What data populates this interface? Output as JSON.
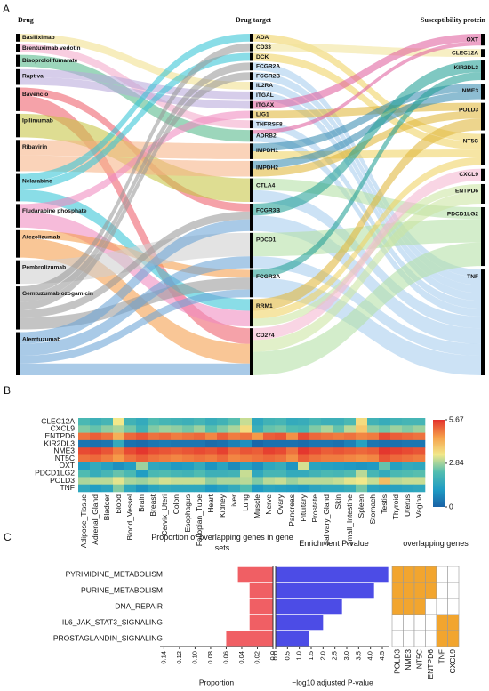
{
  "chart_data": [
    {
      "type": "sankey",
      "panel": "A",
      "columns": [
        {
          "header": "Drug",
          "nodes": [
            {
              "name": "Basiliximab",
              "color": "#f1e08e"
            },
            {
              "name": "Brentuximab vedotin",
              "color": "#f3a9c9"
            },
            {
              "name": "Bisoprolol fumarate",
              "color": "#55b98a"
            },
            {
              "name": "Raptiva",
              "color": "#b9a9da"
            },
            {
              "name": "Bavencio",
              "color": "#ee5f6a"
            },
            {
              "name": "Ipilimumab",
              "color": "#c6c544"
            },
            {
              "name": "Ribavirin",
              "color": "#f6b486"
            },
            {
              "name": "Nelarabine",
              "color": "#36c4d6"
            },
            {
              "name": "Fludarabine phosphate",
              "color": "#f08ac0"
            },
            {
              "name": "Atezolizumab",
              "color": "#f59c4a"
            },
            {
              "name": "Pembrolizumab",
              "color": "#cfcfcf"
            },
            {
              "name": "Gemtuzumab ozogamicin",
              "color": "#9a9a9a"
            },
            {
              "name": "Alemtuzumab",
              "color": "#6ba3d6"
            }
          ]
        },
        {
          "header": "Drug target",
          "nodes": [
            {
              "name": "ADA"
            },
            {
              "name": "CD33"
            },
            {
              "name": "DCK"
            },
            {
              "name": "FCGR2A"
            },
            {
              "name": "FCGR2B"
            },
            {
              "name": "IL2RA"
            },
            {
              "name": "ITGAL"
            },
            {
              "name": "ITGAX"
            },
            {
              "name": "LIG1"
            },
            {
              "name": "TNFRSF8"
            },
            {
              "name": "ADRB2"
            },
            {
              "name": "IMPDH1"
            },
            {
              "name": "IMPDH2"
            },
            {
              "name": "CTLA4"
            },
            {
              "name": "FCGR3B"
            },
            {
              "name": "PDCD1"
            },
            {
              "name": "FCGR3A"
            },
            {
              "name": "RRM1"
            },
            {
              "name": "CD274"
            }
          ]
        },
        {
          "header": "Susceptibility protein",
          "nodes": [
            {
              "name": "OXT",
              "color": "#e0609f"
            },
            {
              "name": "CLEC12A",
              "color": "#f1e49a"
            },
            {
              "name": "KIR2DL3",
              "color": "#23a096"
            },
            {
              "name": "NME3",
              "color": "#3a8db2"
            },
            {
              "name": "POLD3",
              "color": "#e0b73a"
            },
            {
              "name": "NT5C",
              "color": "#efd262"
            },
            {
              "name": "CXCL9",
              "color": "#f5b7d1"
            },
            {
              "name": "ENTPD6",
              "color": "#cbe5a2"
            },
            {
              "name": "PDCD1LG2",
              "color": "#b3e0a6"
            },
            {
              "name": "TNF",
              "color": "#a7cdee"
            }
          ]
        }
      ],
      "links": [
        {
          "source": "Basiliximab",
          "target": "IL2RA",
          "value": 1
        },
        {
          "source": "Brentuximab vedotin",
          "target": "TNFRSF8",
          "value": 1
        },
        {
          "source": "Bisoprolol fumarate",
          "target": "ADRB2",
          "value": 1.5
        },
        {
          "source": "Raptiva",
          "target": "ITGAL",
          "value": 1
        },
        {
          "source": "Raptiva",
          "target": "ITGAX",
          "value": 1
        },
        {
          "source": "Bavencio",
          "target": "FCGR3B",
          "value": 1
        },
        {
          "source": "Bavencio",
          "target": "CD274",
          "value": 2
        },
        {
          "source": "Ipilimumab",
          "target": "CTLA4",
          "value": 3
        },
        {
          "source": "Ribavirin",
          "target": "IMPDH1",
          "value": 2
        },
        {
          "source": "Ribavirin",
          "target": "IMPDH2",
          "value": 2
        },
        {
          "source": "Nelarabine",
          "target": "ADA",
          "value": 1
        },
        {
          "source": "Nelarabine",
          "target": "DCK",
          "value": 1
        },
        {
          "source": "Nelarabine",
          "target": "RRM1",
          "value": 1.5
        },
        {
          "source": "Fludarabine phosphate",
          "target": "LIG1",
          "value": 1
        },
        {
          "source": "Fludarabine phosphate",
          "target": "RRM1",
          "value": 2
        },
        {
          "source": "Atezolizumab",
          "target": "FCGR3A",
          "value": 1
        },
        {
          "source": "Atezolizumab",
          "target": "CD274",
          "value": 2.5
        },
        {
          "source": "Pembrolizumab",
          "target": "PDCD1",
          "value": 3
        },
        {
          "source": "Gemtuzumab ozogamicin",
          "target": "CD33",
          "value": 1
        },
        {
          "source": "Gemtuzumab ozogamicin",
          "target": "FCGR2A",
          "value": 1
        },
        {
          "source": "Gemtuzumab ozogamicin",
          "target": "FCGR2B",
          "value": 1
        },
        {
          "source": "Gemtuzumab ozogamicin",
          "target": "FCGR3B",
          "value": 1
        },
        {
          "source": "Gemtuzumab ozogamicin",
          "target": "FCGR3A",
          "value": 1.5
        },
        {
          "source": "Alemtuzumab",
          "target": "FCGR3B",
          "value": 1.5
        },
        {
          "source": "Alemtuzumab",
          "target": "PDCD1",
          "value": 1.5
        },
        {
          "source": "Alemtuzumab",
          "target": "FCGR3A",
          "value": 1
        },
        {
          "source": "Alemtuzumab",
          "target": "CD274",
          "value": 1.5
        },
        {
          "source": "ADA",
          "target": "NT5C",
          "value": 1
        },
        {
          "source": "CD33",
          "target": "CLEC12A",
          "value": 1
        },
        {
          "source": "DCK",
          "target": "NT5C",
          "value": 1
        },
        {
          "source": "FCGR2A",
          "target": "TNF",
          "value": 1
        },
        {
          "source": "FCGR2B",
          "target": "TNF",
          "value": 1
        },
        {
          "source": "IL2RA",
          "target": "TNF",
          "value": 1
        },
        {
          "source": "ITGAL",
          "target": "TNF",
          "value": 1
        },
        {
          "source": "ITGAX",
          "target": "OXT",
          "value": 1
        },
        {
          "source": "LIG1",
          "target": "POLD3",
          "value": 1
        },
        {
          "source": "TNFRSF8",
          "target": "TNF",
          "value": 1
        },
        {
          "source": "ADRB2",
          "target": "OXT",
          "value": 0.5
        },
        {
          "source": "ADRB2",
          "target": "TNF",
          "value": 1
        },
        {
          "source": "IMPDH1",
          "target": "NME3",
          "value": 1
        },
        {
          "source": "IMPDH1",
          "target": "NT5C",
          "value": 1
        },
        {
          "source": "IMPDH2",
          "target": "NME3",
          "value": 1
        },
        {
          "source": "IMPDH2",
          "target": "POLD3",
          "value": 1
        },
        {
          "source": "CTLA4",
          "target": "PDCD1LG2",
          "value": 1.5
        },
        {
          "source": "CTLA4",
          "target": "TNF",
          "value": 1.5
        },
        {
          "source": "FCGR3B",
          "target": "KIR2DL3",
          "value": 1.5
        },
        {
          "source": "FCGR3B",
          "target": "TNF",
          "value": 2
        },
        {
          "source": "PDCD1",
          "target": "PDCD1LG2",
          "value": 3
        },
        {
          "source": "PDCD1",
          "target": "TNF",
          "value": 1.5
        },
        {
          "source": "FCGR3A",
          "target": "KIR2DL3",
          "value": 1
        },
        {
          "source": "FCGR3A",
          "target": "TNF",
          "value": 2.5
        },
        {
          "source": "RRM1",
          "target": "POLD3",
          "value": 1.5
        },
        {
          "source": "RRM1",
          "target": "NT5C",
          "value": 1
        },
        {
          "source": "RRM1",
          "target": "ENTPD6",
          "value": 1
        },
        {
          "source": "CD274",
          "target": "CXCL9",
          "value": 1.5
        },
        {
          "source": "CD274",
          "target": "ENTPD6",
          "value": 1.5
        },
        {
          "source": "CD274",
          "target": "PDCD1LG2",
          "value": 3
        }
      ]
    },
    {
      "type": "heatmap",
      "panel": "B",
      "rows": [
        "CLEC12A",
        "CXCL9",
        "ENTPD6",
        "KIR2DL3",
        "NME3",
        "NT5C",
        "OXT",
        "PDCD1LG2",
        "POLD3",
        "TNF"
      ],
      "columns": [
        "Adipose_Tissue",
        "Adrenal_Gland",
        "Bladder",
        "Blood",
        "Blood_Vessel",
        "Brain",
        "Breast",
        "Cervix_Uteri",
        "Colon",
        "Esophagus",
        "Fallopian_Tube",
        "Heart",
        "Kidney",
        "Liver",
        "Lung",
        "Muscle",
        "Nerve",
        "Ovary",
        "Pancreas",
        "Pituitary",
        "Prostate",
        "Salivary_Gland",
        "Skin",
        "Small_Intestine",
        "Spleen",
        "Stomach",
        "Testis",
        "Thyroid",
        "Uterus",
        "Vagina"
      ],
      "values": [
        [
          2.1,
          1.8,
          2.0,
          3.4,
          1.9,
          1.6,
          2.2,
          2.0,
          1.9,
          1.8,
          2.0,
          1.7,
          1.9,
          2.3,
          3.1,
          1.5,
          1.9,
          2.0,
          1.6,
          1.7,
          2.0,
          1.8,
          1.8,
          2.1,
          3.6,
          1.9,
          1.7,
          1.9,
          2.0,
          2.0
        ],
        [
          2.6,
          2.4,
          2.7,
          2.9,
          2.5,
          1.9,
          2.6,
          2.8,
          2.7,
          2.5,
          2.8,
          2.3,
          2.6,
          2.9,
          3.6,
          1.8,
          2.4,
          2.5,
          2.2,
          2.1,
          2.6,
          2.9,
          2.4,
          3.0,
          3.9,
          2.7,
          2.5,
          2.8,
          2.6,
          2.8
        ],
        [
          5.0,
          5.2,
          5.0,
          4.3,
          5.1,
          5.3,
          5.0,
          5.1,
          4.9,
          5.0,
          5.1,
          4.8,
          5.2,
          4.9,
          5.0,
          4.6,
          5.2,
          5.3,
          4.7,
          5.4,
          5.1,
          5.0,
          4.9,
          5.0,
          4.8,
          4.9,
          5.4,
          5.2,
          5.1,
          5.0
        ],
        [
          0.4,
          0.3,
          0.4,
          1.6,
          0.3,
          0.2,
          0.4,
          0.5,
          0.4,
          0.4,
          0.4,
          0.2,
          0.3,
          0.6,
          0.9,
          0.1,
          0.3,
          0.3,
          0.3,
          0.2,
          0.4,
          0.4,
          0.3,
          0.6,
          1.3,
          0.4,
          0.3,
          0.3,
          0.4,
          0.4
        ],
        [
          5.4,
          5.5,
          5.3,
          4.9,
          5.4,
          5.6,
          5.4,
          5.3,
          5.2,
          5.3,
          5.4,
          5.3,
          5.5,
          5.1,
          5.3,
          5.2,
          5.5,
          5.4,
          5.0,
          5.6,
          5.4,
          5.2,
          5.3,
          5.2,
          5.1,
          5.2,
          5.6,
          5.5,
          5.4,
          5.3
        ],
        [
          5.0,
          5.1,
          4.9,
          4.6,
          5.0,
          5.2,
          5.0,
          4.9,
          4.8,
          4.9,
          5.0,
          4.9,
          5.1,
          4.8,
          4.9,
          5.0,
          5.1,
          5.0,
          4.7,
          5.2,
          5.0,
          4.9,
          4.9,
          4.8,
          4.7,
          4.8,
          5.3,
          5.1,
          5.0,
          4.9
        ],
        [
          1.2,
          1.6,
          1.3,
          0.9,
          1.2,
          2.8,
          1.5,
          1.4,
          1.1,
          1.2,
          1.6,
          1.0,
          1.4,
          0.8,
          1.3,
          0.9,
          1.5,
          1.7,
          1.0,
          3.2,
          1.4,
          1.3,
          1.2,
          1.1,
          1.0,
          1.1,
          2.4,
          1.3,
          1.6,
          1.5
        ],
        [
          2.2,
          1.7,
          2.0,
          2.4,
          2.1,
          1.2,
          2.1,
          2.2,
          2.0,
          1.9,
          2.2,
          1.8,
          1.8,
          1.9,
          3.1,
          1.5,
          2.0,
          2.0,
          1.6,
          1.6,
          1.9,
          2.1,
          2.0,
          2.2,
          3.0,
          2.0,
          1.6,
          2.1,
          2.2,
          2.3
        ],
        [
          2.9,
          3.0,
          3.0,
          3.3,
          2.9,
          2.8,
          3.0,
          3.2,
          3.1,
          3.1,
          3.1,
          2.7,
          2.9,
          2.9,
          3.0,
          2.6,
          3.0,
          3.1,
          2.8,
          3.0,
          3.0,
          3.0,
          3.1,
          3.3,
          3.4,
          3.1,
          4.1,
          3.0,
          3.1,
          3.1
        ],
        [
          1.5,
          1.2,
          1.4,
          2.6,
          1.5,
          1.0,
          1.4,
          1.6,
          1.5,
          1.5,
          1.5,
          1.1,
          1.3,
          1.6,
          2.2,
          1.1,
          1.4,
          1.3,
          1.2,
          1.1,
          1.4,
          1.5,
          1.5,
          1.7,
          2.5,
          1.4,
          1.3,
          1.3,
          1.4,
          1.5
        ]
      ],
      "zlim": [
        0,
        5.67
      ],
      "zticks": [
        0,
        2.84,
        5.67
      ],
      "colormap": [
        "#1a62a6",
        "#1f9cc4",
        "#52bdb0",
        "#f2e88a",
        "#f6a04a",
        "#e3302c"
      ]
    },
    {
      "type": "hbar",
      "panel": "C",
      "title": "Proportion of overlapping genes in gene sets",
      "xlabel": "Proportion",
      "categories": [
        "PYRIMIDINE_METABOLISM",
        "PURINE_METABOLISM",
        "DNA_REPAIR",
        "IL6_JAK_STAT3_SIGNALING",
        "PROSTAGLANDIN_SIGNALING"
      ],
      "values": [
        0.045,
        0.03,
        0.03,
        0.03,
        0.06
      ],
      "color": "#f05f64",
      "xlim": [
        0.145,
        0
      ],
      "xticks": [
        {
          "value": 0.14,
          "label": "0.14"
        },
        {
          "value": 0.12,
          "label": "0.12"
        },
        {
          "value": 0.1,
          "label": "0.10"
        },
        {
          "value": 0.08,
          "label": "0.08"
        },
        {
          "value": 0.06,
          "label": "0.06"
        },
        {
          "value": 0.04,
          "label": "0.04"
        },
        {
          "value": 0.02,
          "label": "0.02"
        },
        {
          "value": 0,
          "label": "0.0"
        }
      ]
    },
    {
      "type": "hbar",
      "title": "Enrichment P-value",
      "xlabel": "−log10 adjusted P-value",
      "values": [
        4.75,
        4.15,
        2.8,
        2.0,
        1.4
      ],
      "color": "#4c4ce6",
      "xlim": [
        0,
        4.8
      ],
      "xticks": [
        {
          "value": 0,
          "label": "0.0"
        },
        {
          "value": 0.5,
          "label": "0.5"
        },
        {
          "value": 1,
          "label": "1.0"
        },
        {
          "value": 1.5,
          "label": "1.5"
        },
        {
          "value": 2,
          "label": "2.0"
        },
        {
          "value": 2.5,
          "label": "2.5"
        },
        {
          "value": 3,
          "label": "3.0"
        },
        {
          "value": 3.5,
          "label": "3.5"
        },
        {
          "value": 4,
          "label": "4.0"
        },
        {
          "value": 4.5,
          "label": "4.5"
        }
      ]
    },
    {
      "type": "matrix",
      "title": "overlapping genes",
      "columns": [
        "POLD3",
        "NME3",
        "NT5C",
        "ENTPD6",
        "TNF",
        "CXCL9"
      ],
      "values": [
        [
          1,
          1,
          1,
          1,
          0,
          0
        ],
        [
          1,
          1,
          1,
          1,
          0,
          0
        ],
        [
          1,
          1,
          1,
          0,
          0,
          0
        ],
        [
          0,
          0,
          0,
          0,
          1,
          1
        ],
        [
          0,
          0,
          0,
          0,
          1,
          1
        ]
      ],
      "color": "#f2a52e"
    }
  ]
}
